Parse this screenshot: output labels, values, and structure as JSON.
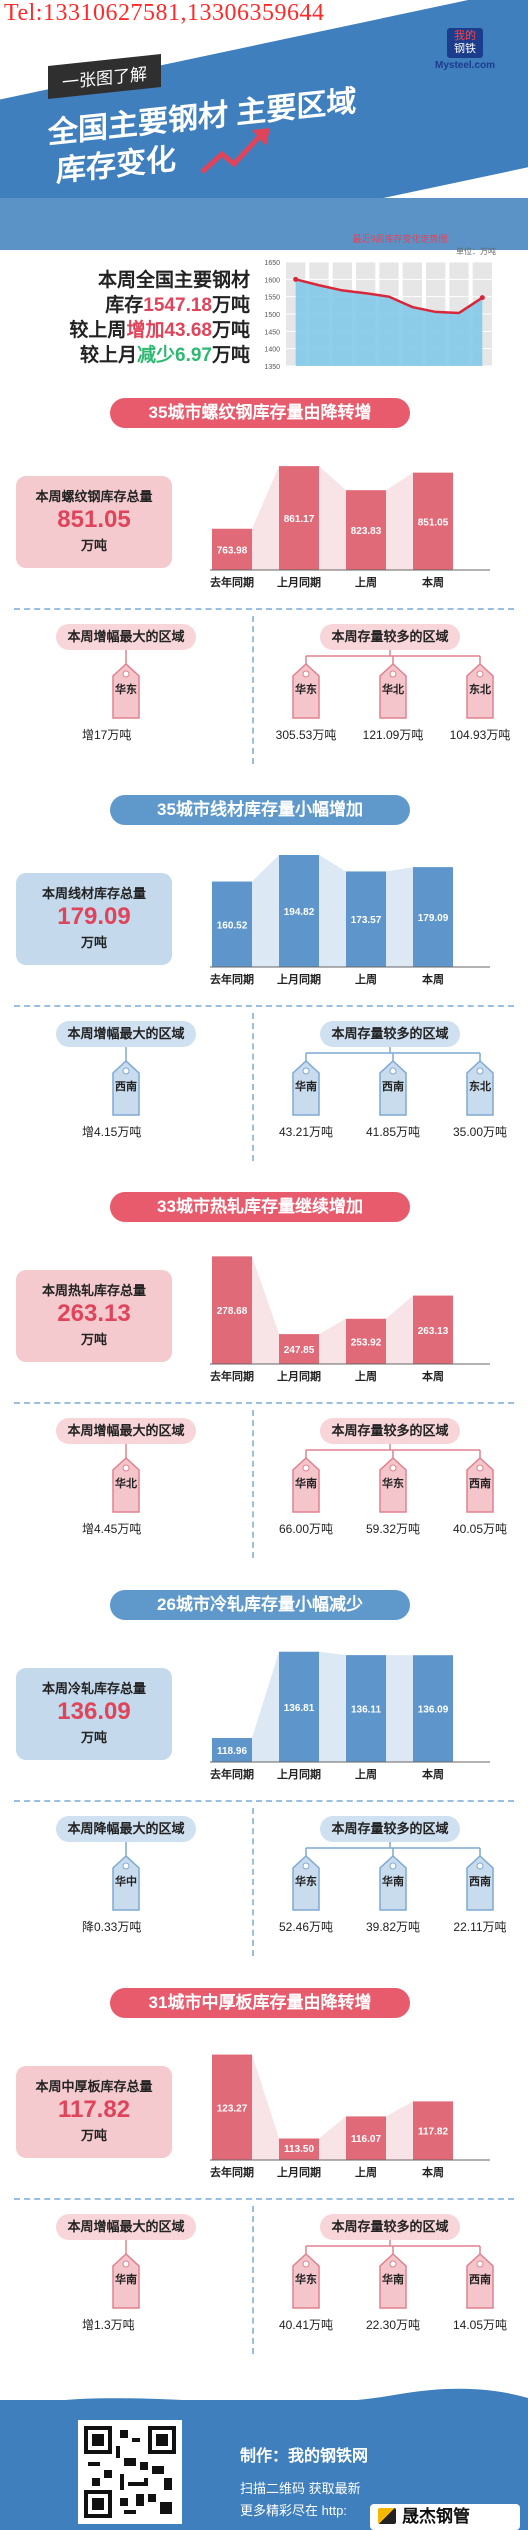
{
  "header": {
    "tel": "Tel:13310627581,13306359644",
    "tag": "一张图了解",
    "title_line1": "全国主要钢材 主要区域",
    "title_line2": "库存变化",
    "logo_line1": "我的",
    "logo_line2": "钢铁",
    "logo_site": "Mysteel.com"
  },
  "summary": {
    "line1": "本周全国主要钢材",
    "line2_pre": "库存",
    "line2_val": "1547.18",
    "line2_post": "万吨",
    "line3_pre": "较上周",
    "line3_val": "增加43.68",
    "line3_post": "万吨",
    "line4_pre": "较上月",
    "line4_val": "减少6.97",
    "line4_post": "万吨"
  },
  "mini_chart": {
    "title": "最近9周库存变化走势图",
    "unit": "单位：万吨",
    "yticks": [
      "1650",
      "1600",
      "1550",
      "1500",
      "1450",
      "1400",
      "1350"
    ],
    "ylim": [
      1350,
      1650
    ],
    "values": [
      1600,
      1583,
      1568,
      1560,
      1550,
      1520,
      1506,
      1503,
      1547.18
    ]
  },
  "sections": [
    {
      "title": "35城市螺纹钢库存量由降转增",
      "theme": "r",
      "total_label": "本周螺纹钢库存总量",
      "total_value": "851.05",
      "total_unit": "万吨",
      "chart_data": {
        "type": "bar",
        "categories": [
          "去年同期",
          "上月同期",
          "上周",
          "本周"
        ],
        "values": [
          763.98,
          861.17,
          823.83,
          851.05
        ],
        "ylim": [
          700,
          880
        ]
      },
      "left_pill": "本周增幅最大的区域",
      "left_regions": [
        {
          "name": "华东",
          "value": "增17万吨"
        }
      ],
      "right_pill": "本周存量较多的区域",
      "right_regions": [
        {
          "name": "华东",
          "value": "305.53万吨"
        },
        {
          "name": "华北",
          "value": "121.09万吨"
        },
        {
          "name": "东北",
          "value": "104.93万吨"
        }
      ]
    },
    {
      "title": "35城市线材库存量小幅增加",
      "theme": "b",
      "total_label": "本周线材库存总量",
      "total_value": "179.09",
      "total_unit": "万吨",
      "chart_data": {
        "type": "bar",
        "categories": [
          "去年同期",
          "上月同期",
          "上周",
          "本周"
        ],
        "values": [
          160.52,
          194.82,
          173.57,
          179.09
        ],
        "ylim": [
          50,
          200
        ]
      },
      "left_pill": "本周增幅最大的区域",
      "left_regions": [
        {
          "name": "西南",
          "value": "增4.15万吨"
        }
      ],
      "right_pill": "本周存量较多的区域",
      "right_regions": [
        {
          "name": "华南",
          "value": "43.21万吨"
        },
        {
          "name": "西南",
          "value": "41.85万吨"
        },
        {
          "name": "东北",
          "value": "35.00万吨"
        }
      ]
    },
    {
      "title": "33城市热轧库存量继续增加",
      "theme": "r",
      "total_label": "本周热轧库存总量",
      "total_value": "263.13",
      "total_unit": "万吨",
      "chart_data": {
        "type": "bar",
        "categories": [
          "去年同期",
          "上月同期",
          "上周",
          "本周"
        ],
        "values": [
          278.68,
          247.85,
          253.92,
          263.13
        ],
        "ylim": [
          236,
          282
        ]
      },
      "left_pill": "本周增幅最大的区域",
      "left_regions": [
        {
          "name": "华北",
          "value": "增4.45万吨"
        }
      ],
      "right_pill": "本周存量较多的区域",
      "right_regions": [
        {
          "name": "华南",
          "value": "66.00万吨"
        },
        {
          "name": "华东",
          "value": "59.32万吨"
        },
        {
          "name": "西南",
          "value": "40.05万吨"
        }
      ]
    },
    {
      "title": "26城市冷轧库存量小幅减少",
      "theme": "b",
      "total_label": "本周冷轧库存总量",
      "total_value": "136.09",
      "total_unit": "万吨",
      "chart_data": {
        "type": "bar",
        "categories": [
          "去年同期",
          "上月同期",
          "上周",
          "本周"
        ],
        "values": [
          118.96,
          136.81,
          136.11,
          136.09
        ],
        "ylim": [
          114,
          138
        ]
      },
      "left_pill": "本周降幅最大的区域",
      "left_regions": [
        {
          "name": "华中",
          "value": "降0.33万吨"
        }
      ],
      "right_pill": "本周存量较多的区域",
      "right_regions": [
        {
          "name": "华东",
          "value": "52.46万吨"
        },
        {
          "name": "华南",
          "value": "39.82万吨"
        },
        {
          "name": "西南",
          "value": "22.11万吨"
        }
      ]
    },
    {
      "title": "31城市中厚板库存量由降转增",
      "theme": "r",
      "total_label": "本周中厚板库存总量",
      "total_value": "117.82",
      "total_unit": "万吨",
      "chart_data": {
        "type": "bar",
        "categories": [
          "去年同期",
          "上月同期",
          "上周",
          "本周"
        ],
        "values": [
          123.27,
          113.5,
          116.07,
          117.82
        ],
        "ylim": [
          111,
          124.5
        ]
      },
      "left_pill": "本周增幅最大的区域",
      "left_regions": [
        {
          "name": "华南",
          "value": "增1.3万吨"
        }
      ],
      "right_pill": "本周存量较多的区域",
      "right_regions": [
        {
          "name": "华东",
          "value": "40.41万吨"
        },
        {
          "name": "华南",
          "value": "22.30万吨"
        },
        {
          "name": "西南",
          "value": "14.05万吨"
        }
      ]
    }
  ],
  "footer": {
    "producer": "制作：我的钢铁网",
    "scan": "扫描二维码 获取最新",
    "more": "更多精彩尽在 http:",
    "brand": "晟杰钢管"
  },
  "colors": {
    "red": "#e85b6c",
    "blue": "#5f99cc",
    "header_blue": "#3f7fbd"
  }
}
